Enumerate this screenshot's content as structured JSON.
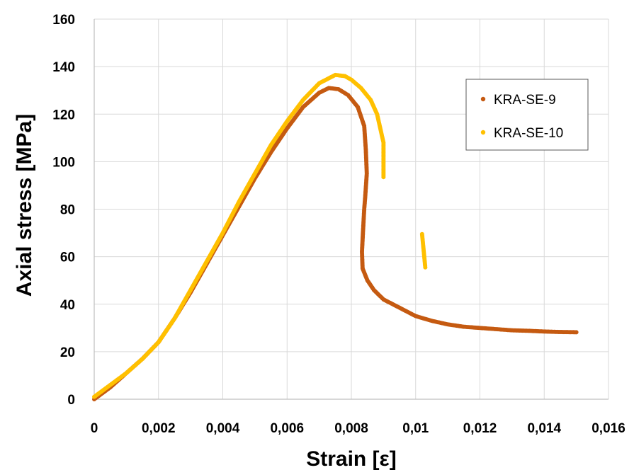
{
  "chart_data": {
    "type": "scatter",
    "xlabel": "Strain [ε]",
    "ylabel": "Axial stress [MPa]",
    "xlim": [
      0,
      0.016
    ],
    "ylim": [
      0,
      160
    ],
    "x_tick_labels": [
      "0",
      "0,002",
      "0,004",
      "0,006",
      "0,008",
      "0,01",
      "0,012",
      "0,014",
      "0,016"
    ],
    "y_tick_labels": [
      "0",
      "20",
      "40",
      "60",
      "80",
      "100",
      "120",
      "140",
      "160"
    ],
    "grid": true,
    "legend_position": "top-right",
    "series": [
      {
        "name": "KRA-SE-9",
        "color": "#C55A11",
        "points": [
          [
            0,
            0
          ],
          [
            0.0005,
            5
          ],
          [
            0.001,
            11
          ],
          [
            0.0015,
            17
          ],
          [
            0.002,
            24
          ],
          [
            0.0025,
            34
          ],
          [
            0.003,
            45
          ],
          [
            0.0035,
            57
          ],
          [
            0.004,
            69
          ],
          [
            0.0045,
            81
          ],
          [
            0.005,
            93
          ],
          [
            0.0055,
            104
          ],
          [
            0.006,
            114
          ],
          [
            0.0065,
            123
          ],
          [
            0.007,
            129
          ],
          [
            0.0073,
            131
          ],
          [
            0.0076,
            130.5
          ],
          [
            0.0079,
            128
          ],
          [
            0.0082,
            123
          ],
          [
            0.0084,
            115
          ],
          [
            0.00845,
            105
          ],
          [
            0.00848,
            95
          ],
          [
            0.00843,
            85
          ],
          [
            0.0084,
            80
          ],
          [
            0.00836,
            70
          ],
          [
            0.00833,
            62
          ],
          [
            0.00835,
            55
          ],
          [
            0.0085,
            50
          ],
          [
            0.0087,
            46
          ],
          [
            0.009,
            42
          ],
          [
            0.0095,
            38.5
          ],
          [
            0.01,
            35
          ],
          [
            0.0105,
            33
          ],
          [
            0.011,
            31.5
          ],
          [
            0.0115,
            30.5
          ],
          [
            0.012,
            30
          ],
          [
            0.0125,
            29.5
          ],
          [
            0.013,
            29
          ],
          [
            0.0135,
            28.8
          ],
          [
            0.014,
            28.5
          ],
          [
            0.0145,
            28.3
          ],
          [
            0.015,
            28.2
          ]
        ]
      },
      {
        "name": "KRA-SE-10",
        "color": "#FFC000",
        "points": [
          [
            0,
            1
          ],
          [
            0.0005,
            6
          ],
          [
            0.001,
            11
          ],
          [
            0.0015,
            17
          ],
          [
            0.002,
            24
          ],
          [
            0.0025,
            34
          ],
          [
            0.003,
            46
          ],
          [
            0.0035,
            58
          ],
          [
            0.004,
            70
          ],
          [
            0.0045,
            83
          ],
          [
            0.005,
            95
          ],
          [
            0.0055,
            107
          ],
          [
            0.006,
            117
          ],
          [
            0.0065,
            126
          ],
          [
            0.007,
            133
          ],
          [
            0.0075,
            136.5
          ],
          [
            0.0078,
            136
          ],
          [
            0.008,
            134.5
          ],
          [
            0.0083,
            131
          ],
          [
            0.0086,
            126
          ],
          [
            0.0088,
            120
          ],
          [
            0.0089,
            114
          ],
          [
            0.009,
            108
          ],
          [
            0.009,
            105
          ],
          [
            0.009,
            102
          ],
          [
            0.009,
            99
          ],
          [
            0.009,
            96
          ],
          [
            0.009,
            93.5
          ],
          [
            0.0102,
            69.5
          ],
          [
            0.0103,
            55.5
          ]
        ]
      }
    ]
  }
}
